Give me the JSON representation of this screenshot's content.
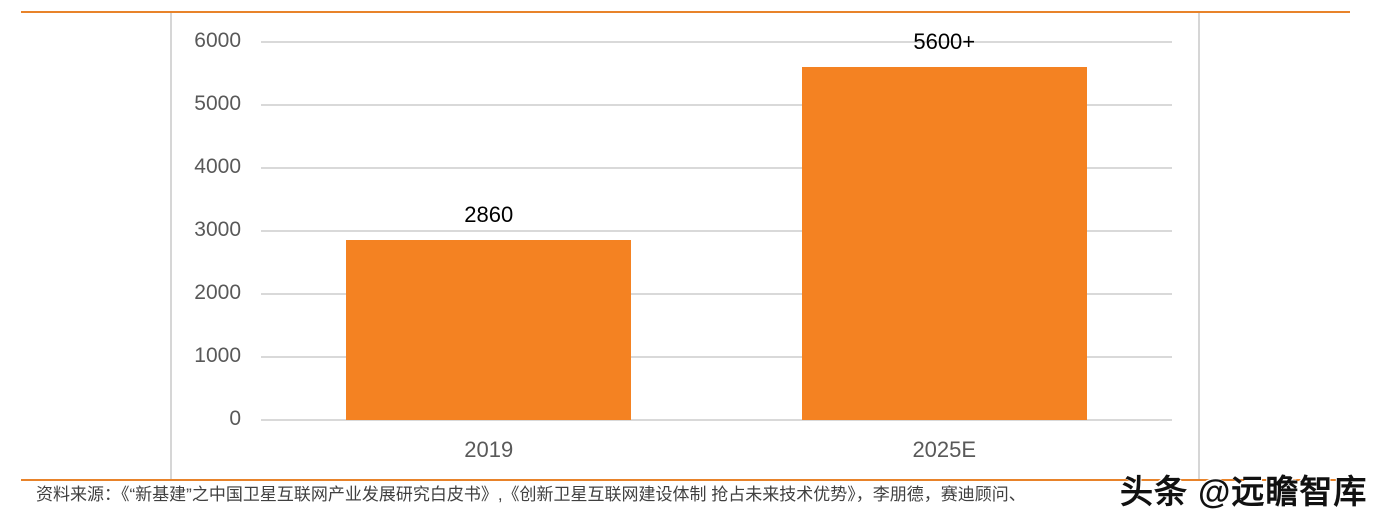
{
  "chart_data": {
    "type": "bar",
    "title": "",
    "xlabel": "",
    "ylabel": "",
    "categories": [
      "2019",
      "2025E"
    ],
    "values": [
      2860,
      5600
    ],
    "data_labels": [
      "2860",
      "5600+"
    ],
    "ylim": [
      0,
      6000
    ],
    "yticks": [
      "0",
      "1000",
      "2000",
      "3000",
      "4000",
      "5000",
      "6000"
    ],
    "grid": true,
    "legend": null,
    "bar_color": "#f48222"
  },
  "accent_color": "#e8832a",
  "footer": {
    "source_text": "资料来源：《“新基建”之中国卫星互联网产业发展研究白皮书》,《创新卫星互联网建设体制 抢占未来技术优势》，李朋德，赛迪顾问、",
    "watermark": "头条 @远瞻智库"
  }
}
